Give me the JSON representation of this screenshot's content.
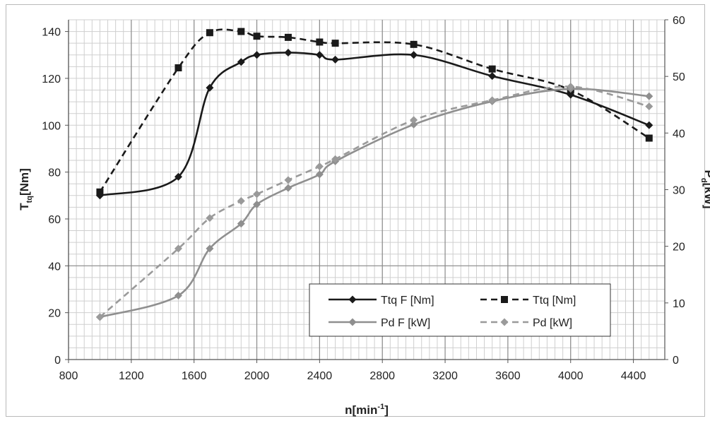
{
  "chart_data": {
    "type": "line",
    "xlabel": "n[min",
    "xlabel_sup": "-1",
    "xlabel_end": "]",
    "ylabel": "T",
    "ylabel_sub": "tq",
    "ylabel_end": "[Nm]",
    "y2label": "P",
    "y2label_sub": "d",
    "y2label_end": "[kW]",
    "xlim": [
      800,
      4600
    ],
    "ylim": [
      0,
      145
    ],
    "y2lim": [
      0,
      60
    ],
    "xticks": [
      800,
      1200,
      1600,
      2000,
      2400,
      2800,
      3200,
      3600,
      4000,
      4400
    ],
    "yticks": [
      0,
      20,
      40,
      60,
      80,
      100,
      120,
      140
    ],
    "y2ticks": [
      0,
      10,
      20,
      30,
      40,
      50,
      60
    ],
    "grid": true,
    "legend_position": "lower-right",
    "series": [
      {
        "name": "Ttq F [Nm]",
        "axis": "left",
        "color": "#1a1a1a",
        "dash": "solid",
        "marker": "diamond",
        "x": [
          1000,
          1500,
          1700,
          1900,
          2000,
          2200,
          2400,
          2500,
          3000,
          3500,
          4000,
          4500
        ],
        "y": [
          70,
          78,
          116,
          127,
          130,
          131,
          130,
          128,
          130,
          121,
          113,
          100
        ]
      },
      {
        "name": "Ttq [Nm]",
        "axis": "left",
        "color": "#1a1a1a",
        "dash": "dashed",
        "marker": "square",
        "x": [
          1000,
          1500,
          1700,
          1900,
          2000,
          2200,
          2400,
          2500,
          3000,
          3500,
          4000,
          4500
        ],
        "y": [
          71.5,
          124.5,
          139.5,
          140,
          138,
          137.5,
          135.5,
          135,
          134.5,
          124,
          115,
          94.5
        ]
      },
      {
        "name": "Pd F [kW]",
        "axis": "right",
        "color": "#8f8f8f",
        "dash": "solid",
        "marker": "diamond",
        "x": [
          1000,
          1500,
          1700,
          1900,
          2000,
          2200,
          2400,
          2500,
          3000,
          3500,
          4000,
          4500
        ],
        "y": [
          7.5,
          11.3,
          19.6,
          24,
          27.4,
          30.3,
          32.7,
          35,
          41.5,
          45.6,
          47.8,
          46.5
        ]
      },
      {
        "name": "Pd [kW]",
        "axis": "right",
        "color": "#9a9a9a",
        "dash": "dashed",
        "marker": "diamond",
        "x": [
          1000,
          1500,
          1700,
          1900,
          2000,
          2200,
          2400,
          2500,
          3000,
          3500,
          4000,
          4500
        ],
        "y": [
          7.5,
          19.6,
          25,
          28,
          29.2,
          31.7,
          34.1,
          35.4,
          42.3,
          45.8,
          48.2,
          44.7
        ]
      }
    ]
  }
}
